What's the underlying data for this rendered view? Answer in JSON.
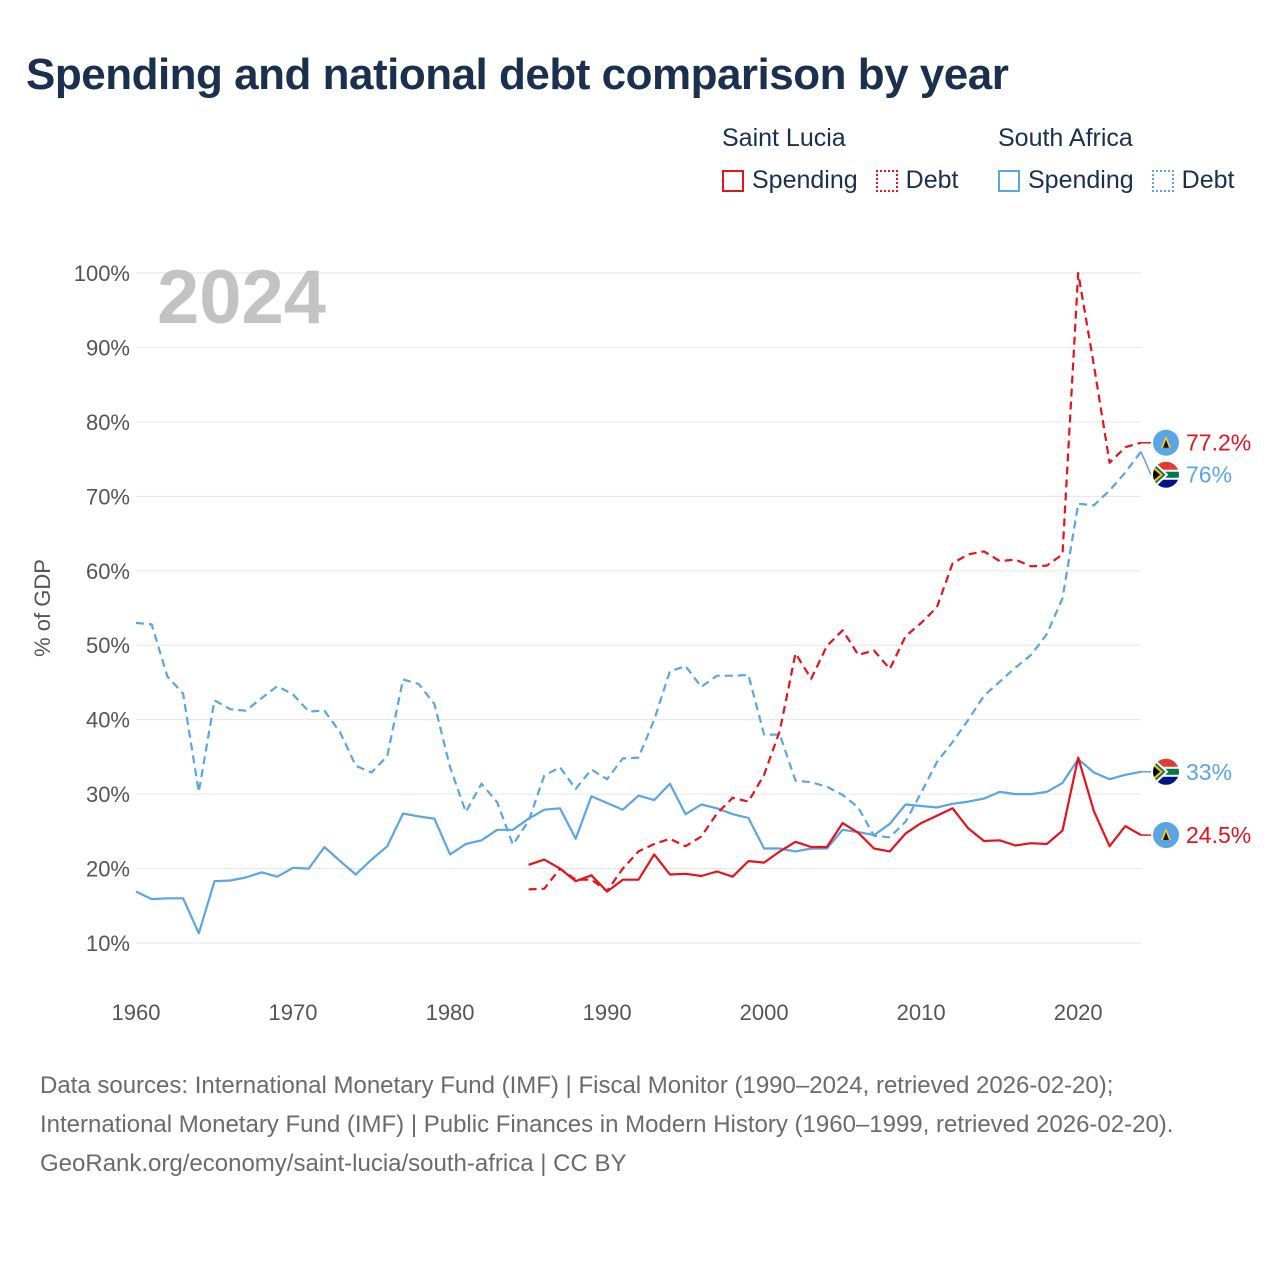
{
  "title": "Spending and national debt comparison by year",
  "legend": {
    "groups": [
      {
        "country": "Saint Lucia",
        "spending_label": "Spending",
        "debt_label": "Debt",
        "color": "#e8121c"
      },
      {
        "country": "South Africa",
        "spending_label": "Spending",
        "debt_label": "Debt",
        "color": "#5aa5e6"
      }
    ]
  },
  "footer": {
    "sources": "Data sources: International Monetary Fund (IMF) | Fiscal Monitor (1990–2024, retrieved 2026-02-20); International Monetary Fund (IMF) | Public Finances in Modern History (1960–1999, retrieved 2026-02-20).",
    "url": "GeoRank.org/economy/saint-lucia/south-africa | CC BY"
  },
  "chart_data": {
    "type": "line",
    "year_watermark": "2024",
    "ylabel": "% of GDP",
    "xlabel": "",
    "xlim": [
      1960,
      2024
    ],
    "ylim": [
      10,
      100
    ],
    "x_ticks": [
      1960,
      1970,
      1980,
      1990,
      2000,
      2010,
      2020
    ],
    "y_ticks": [
      10,
      20,
      30,
      40,
      50,
      60,
      70,
      80,
      90,
      100
    ],
    "y_tick_labels": [
      "10%",
      "20%",
      "30%",
      "40%",
      "50%",
      "60%",
      "70%",
      "80%",
      "90%",
      "100%"
    ],
    "grid": true,
    "series": [
      {
        "name": "South Africa Debt",
        "country": "South Africa",
        "metric": "Debt",
        "color": "#5aa5e6",
        "dash": true,
        "end_label": "76%",
        "start_year": 1960,
        "values": [
          53,
          52.8,
          45.8,
          43.5,
          30.3,
          42.6,
          41.4,
          41.2,
          42.9,
          44.5,
          43.4,
          41.1,
          41.2,
          38.3,
          33.8,
          32.9,
          35.1,
          45.4,
          44.8,
          42.1,
          33.6,
          27.6,
          31.4,
          28.9,
          23.2,
          26.4,
          32.5,
          33.6,
          30.7,
          33.3,
          32,
          34.8,
          34.9,
          40,
          46.5,
          47.2,
          44.4,
          45.9,
          45.9,
          46,
          38,
          38,
          31.8,
          31.6,
          31,
          29.9,
          28.2,
          24.4,
          24.2,
          26.3,
          30.2,
          34.3,
          37,
          40,
          43.2,
          45.1,
          47,
          48.7,
          51.5,
          56.3,
          69,
          68.8,
          70.8,
          73.2,
          76
        ]
      },
      {
        "name": "South Africa Spending",
        "country": "South Africa",
        "metric": "Spending",
        "color": "#5aa5e6",
        "dash": false,
        "end_label": "33%",
        "start_year": 1960,
        "values": [
          16.9,
          15.9,
          16,
          16,
          11.3,
          18.3,
          18.4,
          18.8,
          19.5,
          18.9,
          20.1,
          20,
          22.9,
          21,
          19.2,
          21.2,
          23,
          27.4,
          27,
          26.7,
          21.9,
          23.3,
          23.8,
          25.2,
          25.2,
          26.7,
          27.9,
          28.1,
          24,
          29.7,
          28.8,
          27.9,
          29.8,
          29.2,
          31.4,
          27.3,
          28.6,
          28.1,
          27.3,
          26.8,
          22.7,
          22.7,
          22.3,
          22.7,
          22.7,
          25.2,
          24.9,
          24.5,
          26,
          28.6,
          28.4,
          28.2,
          28.7,
          29,
          29.4,
          30.3,
          30,
          30,
          30.3,
          31.5,
          34.7,
          32.9,
          32,
          32.6,
          33
        ]
      },
      {
        "name": "Saint Lucia Debt",
        "country": "Saint Lucia",
        "metric": "Debt",
        "color": "#e8121c",
        "dash": true,
        "end_label": "77.2%",
        "start_year": 1985,
        "values": [
          17.2,
          17.3,
          20,
          18.5,
          18.5,
          17,
          20,
          22.3,
          23.3,
          24,
          23,
          24.3,
          27.4,
          29.5,
          29,
          32.6,
          38.5,
          48.9,
          45.5,
          49.9,
          52,
          48.7,
          49.3,
          46.8,
          51.2,
          53,
          55.1,
          61,
          62.2,
          62.6,
          61.3,
          61.5,
          60.6,
          60.7,
          62.2,
          100,
          87.6,
          74.5,
          76.6,
          77.2
        ]
      },
      {
        "name": "Saint Lucia Spending",
        "country": "Saint Lucia",
        "metric": "Spending",
        "color": "#e8121c",
        "dash": false,
        "end_label": "24.5%",
        "start_year": 1985,
        "values": [
          20.5,
          21.2,
          20,
          18.3,
          19.1,
          16.9,
          18.5,
          18.5,
          21.9,
          19.2,
          19.3,
          19,
          19.6,
          18.9,
          21,
          20.8,
          22.3,
          23.6,
          22.9,
          22.9,
          26.1,
          24.8,
          22.7,
          22.3,
          24.7,
          26.1,
          27.1,
          28.1,
          25.4,
          23.7,
          23.8,
          23.1,
          23.4,
          23.3,
          25.1,
          34.9,
          27.7,
          23,
          25.7,
          24.5
        ]
      }
    ]
  }
}
